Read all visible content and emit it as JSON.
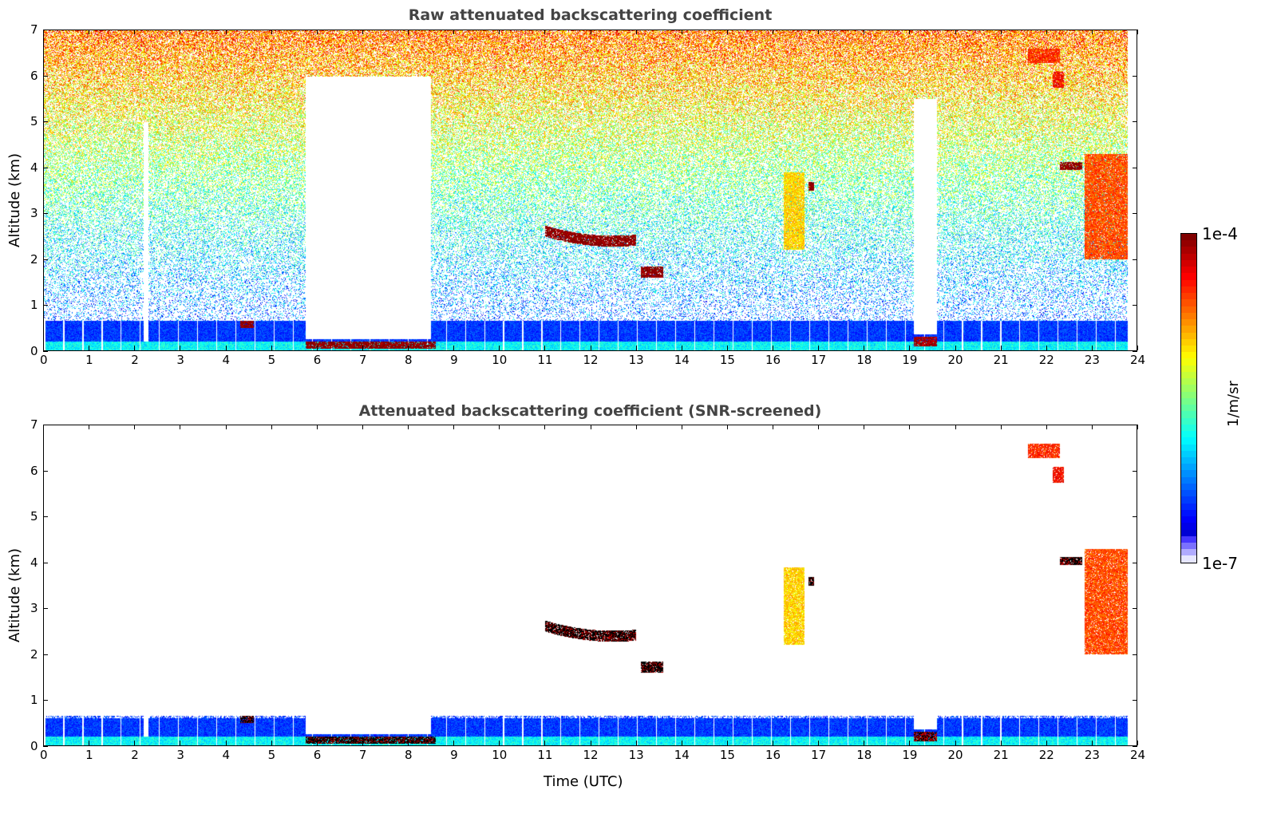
{
  "chart_data": [
    {
      "type": "heatmap",
      "title": "Raw attenuated backscattering coefficient",
      "xlabel": "",
      "ylabel": "Altitude (km)",
      "xlim": [
        0,
        24
      ],
      "ylim": [
        0,
        7
      ],
      "xticks": [
        "0",
        "1",
        "2",
        "3",
        "4",
        "5",
        "6",
        "7",
        "8",
        "9",
        "10",
        "11",
        "12",
        "13",
        "14",
        "15",
        "16",
        "17",
        "18",
        "19",
        "20",
        "21",
        "22",
        "23",
        "24"
      ],
      "yticks": [
        "0",
        "1",
        "2",
        "3",
        "4",
        "5",
        "6",
        "7"
      ],
      "screened": false
    },
    {
      "type": "heatmap",
      "title": "Attenuated backscattering coefficient (SNR-screened)",
      "xlabel": "Time (UTC)",
      "ylabel": "Altitude (km)",
      "xlim": [
        0,
        24
      ],
      "ylim": [
        0,
        7
      ],
      "xticks": [
        "0",
        "1",
        "2",
        "3",
        "4",
        "5",
        "6",
        "7",
        "8",
        "9",
        "10",
        "11",
        "12",
        "13",
        "14",
        "15",
        "16",
        "17",
        "18",
        "19",
        "20",
        "21",
        "22",
        "23",
        "24"
      ],
      "yticks": [
        "0",
        "1",
        "2",
        "3",
        "4",
        "5",
        "6",
        "7"
      ],
      "screened": true
    }
  ],
  "features": {
    "boundary_layer_top_km": 0.65,
    "gaps": [
      {
        "t0": 5.75,
        "t1": 8.5,
        "alt_from": 0.25,
        "alt_to": 6.0
      },
      {
        "t0": 19.1,
        "t1": 19.6,
        "alt_from": 0.35,
        "alt_to": 5.5
      },
      {
        "t0": 2.18,
        "t1": 2.28,
        "alt_from": 0.2,
        "alt_to": 5.0
      }
    ],
    "clouds": [
      {
        "t0": 4.3,
        "t1": 4.6,
        "bottom": 0.5,
        "top": 0.65,
        "log_value": -4.0
      },
      {
        "t0": 5.75,
        "t1": 8.6,
        "bottom": 0.05,
        "top": 0.2,
        "log_value": -4.0
      },
      {
        "t0": 11.0,
        "t1": 13.0,
        "bottom": 2.3,
        "top": 2.7,
        "log_value": -4.0,
        "arc": true
      },
      {
        "t0": 13.1,
        "t1": 13.6,
        "bottom": 1.6,
        "top": 1.85,
        "log_value": -4.0
      },
      {
        "t0": 16.25,
        "t1": 16.7,
        "bottom": 2.2,
        "top": 3.9,
        "log_value": -5.0
      },
      {
        "t0": 16.78,
        "t1": 16.9,
        "bottom": 3.5,
        "top": 3.7,
        "log_value": -4.0
      },
      {
        "t0": 19.1,
        "t1": 19.6,
        "bottom": 0.1,
        "top": 0.3,
        "log_value": -4.1
      },
      {
        "t0": 22.15,
        "t1": 22.4,
        "bottom": 5.75,
        "top": 6.1,
        "log_value": -4.4
      },
      {
        "t0": 22.3,
        "t1": 22.8,
        "bottom": 3.95,
        "top": 4.12,
        "log_value": -4.0
      },
      {
        "t0": 22.85,
        "t1": 23.8,
        "bottom": 2.0,
        "top": 4.3,
        "log_value": -4.6
      },
      {
        "t0": 21.6,
        "t1": 22.3,
        "bottom": 6.3,
        "top": 6.6,
        "log_value": -4.5
      }
    ]
  },
  "colorbar": {
    "label": "1/m/sr",
    "max_label": "1e-4",
    "min_label": "1e-7",
    "range_log": [
      -7,
      -4
    ]
  }
}
